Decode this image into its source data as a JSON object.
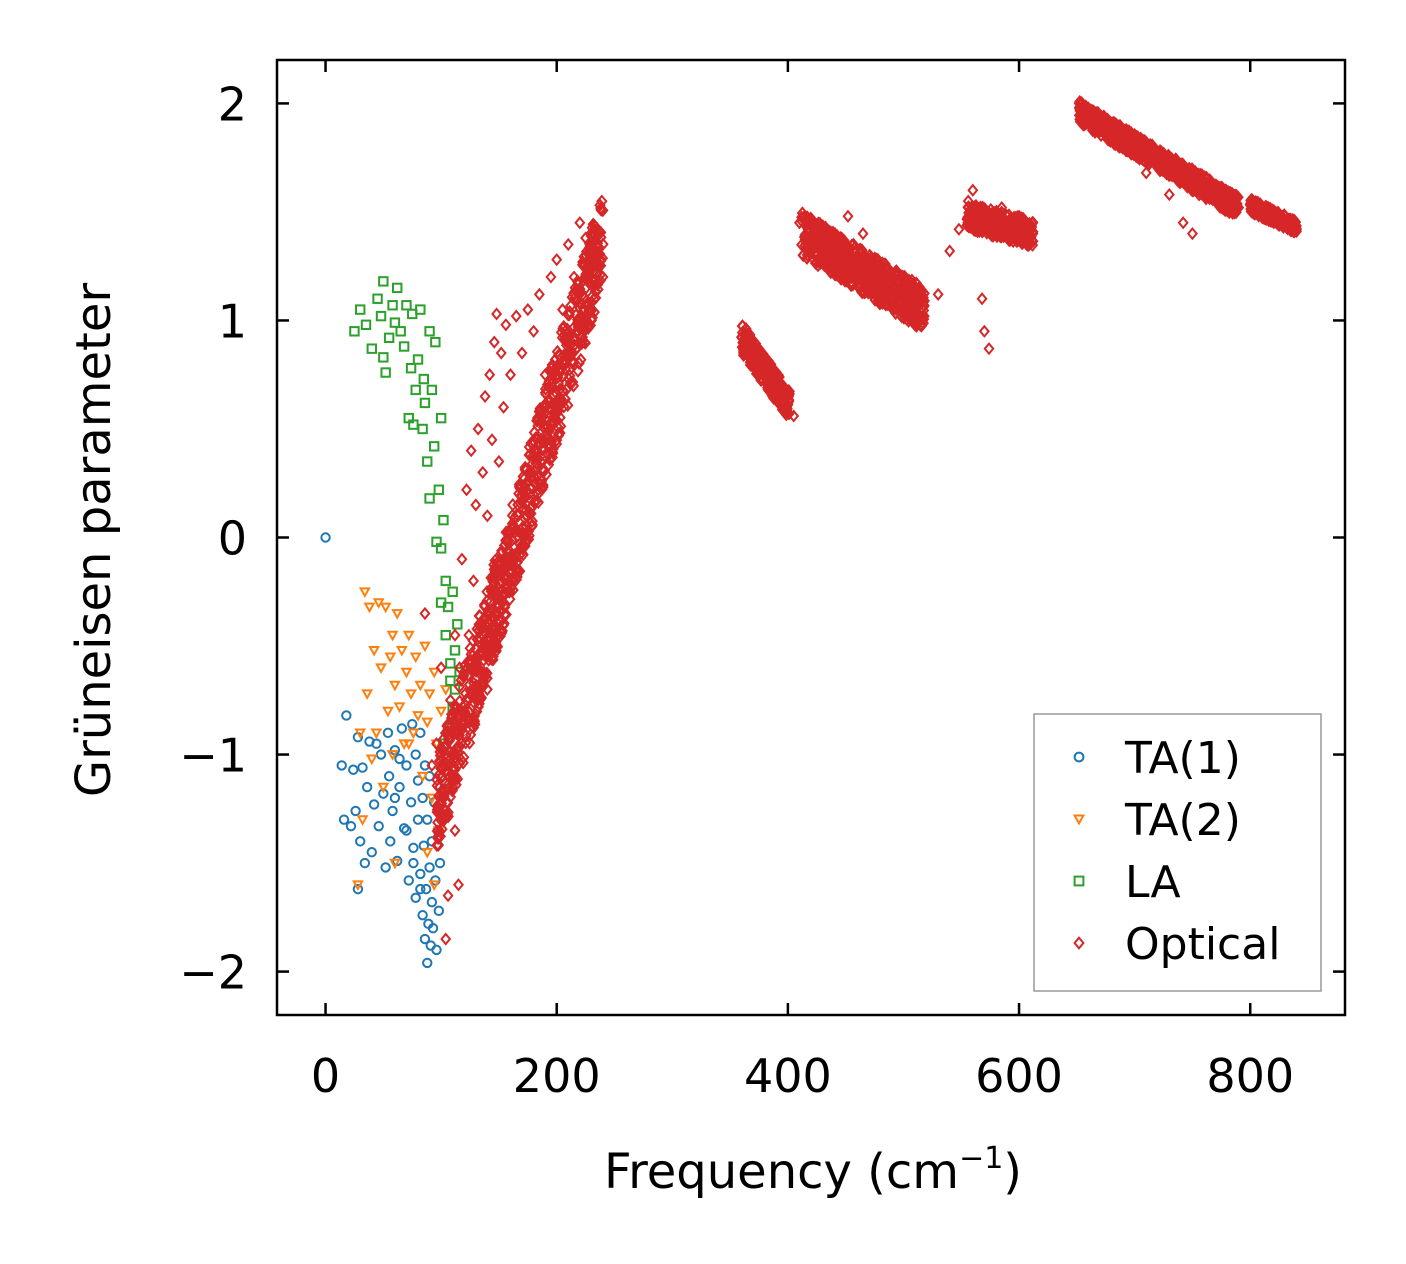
{
  "chart_data": {
    "type": "scatter",
    "title": "",
    "xlabel": "Frequency (cm",
    "xlabel_sup": "−1",
    "xlabel_close": ")",
    "ylabel": "Grüneisen parameter",
    "xlim": [
      -42,
      882
    ],
    "ylim": [
      -2.2,
      2.2
    ],
    "xticks": [
      0,
      200,
      400,
      600,
      800
    ],
    "xtick_labels": [
      "0",
      "200",
      "400",
      "600",
      "800"
    ],
    "yticks": [
      -2,
      -1,
      0,
      1,
      2
    ],
    "ytick_labels": [
      "−2",
      "−1",
      "0",
      "1",
      "2"
    ],
    "legend_position": "bottom-right",
    "series": [
      {
        "name": "TA(1)",
        "marker": "circle",
        "color": "#1f77b4",
        "points": [
          [
            0,
            0
          ],
          [
            14,
            -1.05
          ],
          [
            16,
            -1.3
          ],
          [
            18,
            -0.82
          ],
          [
            22,
            -1.33
          ],
          [
            24,
            -1.07
          ],
          [
            26,
            -1.26
          ],
          [
            28,
            -0.92
          ],
          [
            28,
            -1.62
          ],
          [
            30,
            -1.4
          ],
          [
            32,
            -1.06
          ],
          [
            34,
            -1.5
          ],
          [
            36,
            -1.15
          ],
          [
            38,
            -0.94
          ],
          [
            40,
            -1.45
          ],
          [
            42,
            -1.23
          ],
          [
            44,
            -0.95
          ],
          [
            46,
            -1.33
          ],
          [
            48,
            -1.0
          ],
          [
            50,
            -1.18
          ],
          [
            52,
            -1.52
          ],
          [
            54,
            -0.9
          ],
          [
            55,
            -1.1
          ],
          [
            56,
            -1.4
          ],
          [
            58,
            -1.26
          ],
          [
            60,
            -0.98
          ],
          [
            62,
            -1.49
          ],
          [
            64,
            -1.15
          ],
          [
            66,
            -0.88
          ],
          [
            68,
            -1.34
          ],
          [
            70,
            -1.05
          ],
          [
            72,
            -1.58
          ],
          [
            74,
            -1.22
          ],
          [
            75,
            -0.86
          ],
          [
            76,
            -1.43
          ],
          [
            78,
            -1.0
          ],
          [
            78,
            -1.66
          ],
          [
            80,
            -1.3
          ],
          [
            80,
            -1.12
          ],
          [
            82,
            -1.55
          ],
          [
            82,
            -0.9
          ],
          [
            84,
            -1.74
          ],
          [
            84,
            -1.2
          ],
          [
            85,
            -1.42
          ],
          [
            86,
            -1.85
          ],
          [
            86,
            -1.05
          ],
          [
            87,
            -1.62
          ],
          [
            88,
            -1.96
          ],
          [
            88,
            -1.3
          ],
          [
            89,
            -1.78
          ],
          [
            90,
            -1.52
          ],
          [
            90,
            -1.1
          ],
          [
            91,
            -1.88
          ],
          [
            92,
            -1.68
          ],
          [
            92,
            -1.4
          ],
          [
            93,
            -1.8
          ],
          [
            94,
            -1.22
          ],
          [
            95,
            -1.58
          ],
          [
            96,
            -1.9
          ],
          [
            97,
            -1.35
          ],
          [
            98,
            -1.72
          ],
          [
            99,
            -1.5
          ],
          [
            100,
            -1.28
          ],
          [
            64,
            -1.02
          ],
          [
            60,
            -1.2
          ],
          [
            70,
            -1.35
          ],
          [
            76,
            -1.5
          ],
          [
            82,
            -1.62
          ]
        ]
      },
      {
        "name": "TA(2)",
        "marker": "triangle-down",
        "color": "#ff7f0e",
        "points": [
          [
            28,
            -1.6
          ],
          [
            30,
            -0.9
          ],
          [
            32,
            -1.3
          ],
          [
            34,
            -0.25
          ],
          [
            36,
            -0.72
          ],
          [
            38,
            -0.32
          ],
          [
            40,
            -1.02
          ],
          [
            42,
            -0.52
          ],
          [
            44,
            -0.9
          ],
          [
            46,
            -0.3
          ],
          [
            48,
            -0.6
          ],
          [
            50,
            -1.15
          ],
          [
            52,
            -0.32
          ],
          [
            54,
            -0.8
          ],
          [
            56,
            -0.55
          ],
          [
            58,
            -1.0
          ],
          [
            60,
            -0.68
          ],
          [
            62,
            -0.35
          ],
          [
            64,
            -0.78
          ],
          [
            66,
            -0.52
          ],
          [
            68,
            -0.95
          ],
          [
            70,
            -0.62
          ],
          [
            72,
            -0.45
          ],
          [
            74,
            -0.72
          ],
          [
            76,
            -0.9
          ],
          [
            78,
            -0.55
          ],
          [
            80,
            -0.82
          ],
          [
            82,
            -0.68
          ],
          [
            84,
            -1.1
          ],
          [
            86,
            -0.5
          ],
          [
            88,
            -0.85
          ],
          [
            90,
            -0.72
          ],
          [
            92,
            -1.2
          ],
          [
            94,
            -0.62
          ],
          [
            96,
            -0.95
          ],
          [
            98,
            -1.35
          ],
          [
            100,
            -0.8
          ],
          [
            102,
            -1.05
          ],
          [
            104,
            -0.7
          ],
          [
            106,
            -0.9
          ],
          [
            60,
            -1.5
          ],
          [
            58,
            -0.45
          ],
          [
            72,
            -0.95
          ],
          [
            88,
            -1.45
          ],
          [
            94,
            -1.6
          ]
        ]
      },
      {
        "name": "LA",
        "marker": "square",
        "color": "#2ca02c",
        "points": [
          [
            25,
            0.95
          ],
          [
            30,
            1.05
          ],
          [
            35,
            0.98
          ],
          [
            40,
            0.87
          ],
          [
            45,
            1.1
          ],
          [
            48,
            1.02
          ],
          [
            50,
            0.83
          ],
          [
            50,
            1.18
          ],
          [
            52,
            0.76
          ],
          [
            55,
            0.92
          ],
          [
            58,
            1.07
          ],
          [
            60,
            0.99
          ],
          [
            62,
            1.15
          ],
          [
            65,
            0.95
          ],
          [
            68,
            0.88
          ],
          [
            70,
            1.07
          ],
          [
            72,
            0.55
          ],
          [
            74,
            0.78
          ],
          [
            75,
            1.03
          ],
          [
            76,
            0.52
          ],
          [
            78,
            0.68
          ],
          [
            80,
            0.82
          ],
          [
            82,
            1.05
          ],
          [
            84,
            0.5
          ],
          [
            85,
            0.73
          ],
          [
            86,
            0.62
          ],
          [
            88,
            0.35
          ],
          [
            90,
            0.95
          ],
          [
            90,
            0.18
          ],
          [
            92,
            0.68
          ],
          [
            94,
            0.42
          ],
          [
            95,
            0.9
          ],
          [
            96,
            -0.02
          ],
          [
            98,
            0.22
          ],
          [
            100,
            0.55
          ],
          [
            100,
            -0.05
          ],
          [
            102,
            0.08
          ],
          [
            104,
            -0.2
          ],
          [
            104,
            -0.45
          ],
          [
            106,
            -0.32
          ],
          [
            108,
            -0.58
          ],
          [
            110,
            -0.25
          ],
          [
            112,
            -0.52
          ],
          [
            112,
            -0.7
          ],
          [
            114,
            -0.4
          ],
          [
            116,
            -0.62
          ],
          [
            110,
            -0.78
          ],
          [
            106,
            -0.88
          ],
          [
            104,
            -1.02
          ],
          [
            100,
            -0.3
          ],
          [
            102,
            -0.95
          ],
          [
            108,
            -0.66
          ]
        ]
      },
      {
        "name": "Optical",
        "marker": "diamond",
        "color": "#d62728",
        "points": [
          [
            86,
            -0.35
          ],
          [
            92,
            -1.05
          ],
          [
            96,
            -0.95
          ],
          [
            100,
            -0.6
          ],
          [
            102,
            -1.25
          ],
          [
            104,
            -1.85
          ],
          [
            106,
            -1.65
          ],
          [
            108,
            -0.75
          ],
          [
            110,
            -1.15
          ],
          [
            112,
            -0.45
          ],
          [
            112,
            -1.35
          ],
          [
            114,
            -0.9
          ],
          [
            115,
            -1.6
          ],
          [
            116,
            -0.6
          ],
          [
            118,
            -0.1
          ],
          [
            120,
            -0.8
          ],
          [
            122,
            0.22
          ],
          [
            124,
            -0.45
          ],
          [
            126,
            0.4
          ],
          [
            128,
            -0.2
          ],
          [
            130,
            0.15
          ],
          [
            132,
            0.5
          ],
          [
            134,
            -0.7
          ],
          [
            136,
            0.3
          ],
          [
            138,
            0.65
          ],
          [
            140,
            0.1
          ],
          [
            142,
            0.75
          ],
          [
            144,
            0.45
          ],
          [
            146,
            0.9
          ],
          [
            148,
            1.03
          ],
          [
            150,
            0.35
          ],
          [
            152,
            0.85
          ],
          [
            154,
            0.6
          ],
          [
            156,
            0.98
          ],
          [
            160,
            0.75
          ],
          [
            165,
            1.02
          ],
          [
            170,
            0.85
          ],
          [
            175,
            1.05
          ],
          [
            180,
            0.95
          ],
          [
            185,
            1.12
          ],
          [
            190,
            0.75
          ],
          [
            195,
            1.2
          ],
          [
            200,
            1.28
          ],
          [
            205,
            1.05
          ],
          [
            210,
            1.35
          ],
          [
            215,
            1.2
          ],
          [
            220,
            1.45
          ],
          [
            225,
            1.38
          ],
          [
            230,
            1.3
          ],
          [
            235,
            1.25
          ],
          [
            240,
            1.2
          ],
          [
            140,
            -0.7
          ],
          [
            362,
            0.9
          ],
          [
            375,
            0.8
          ],
          [
            388,
            0.68
          ],
          [
            405,
            0.56
          ],
          [
            410,
            1.45
          ],
          [
            425,
            1.4
          ],
          [
            440,
            1.35
          ],
          [
            452,
            1.48
          ],
          [
            465,
            1.4
          ],
          [
            478,
            1.28
          ],
          [
            490,
            1.18
          ],
          [
            505,
            1.12
          ],
          [
            518,
            1.02
          ],
          [
            530,
            1.12
          ],
          [
            540,
            1.32
          ],
          [
            548,
            1.42
          ],
          [
            556,
            1.55
          ],
          [
            560,
            1.6
          ],
          [
            568,
            1.1
          ],
          [
            570,
            0.95
          ],
          [
            574,
            0.87
          ],
          [
            585,
            1.52
          ],
          [
            600,
            1.48
          ],
          [
            612,
            1.4
          ],
          [
            652,
            1.98
          ],
          [
            670,
            1.9
          ],
          [
            690,
            1.8
          ],
          [
            710,
            1.68
          ],
          [
            730,
            1.58
          ],
          [
            742,
            1.45
          ],
          [
            750,
            1.4
          ],
          [
            770,
            1.56
          ],
          [
            790,
            1.52
          ],
          [
            810,
            1.52
          ],
          [
            825,
            1.46
          ],
          [
            840,
            1.41
          ]
        ],
        "clusters": [
          {
            "x_start": 96,
            "x_end": 240,
            "center_start": -1.25,
            "center_end": 1.38,
            "spread": 0.22
          },
          {
            "x_start": 360,
            "x_end": 402,
            "center_start": 0.92,
            "center_end": 0.6,
            "spread": 0.07
          },
          {
            "x_start": 412,
            "x_end": 518,
            "center_start": 1.4,
            "center_end": 1.05,
            "spread": 0.1
          },
          {
            "x_start": 555,
            "x_end": 612,
            "center_start": 1.48,
            "center_end": 1.4,
            "spread": 0.06
          },
          {
            "x_start": 652,
            "x_end": 790,
            "center_start": 1.96,
            "center_end": 1.52,
            "spread": 0.05
          },
          {
            "x_start": 800,
            "x_end": 840,
            "center_start": 1.53,
            "center_end": 1.43,
            "spread": 0.03
          }
        ]
      }
    ]
  }
}
